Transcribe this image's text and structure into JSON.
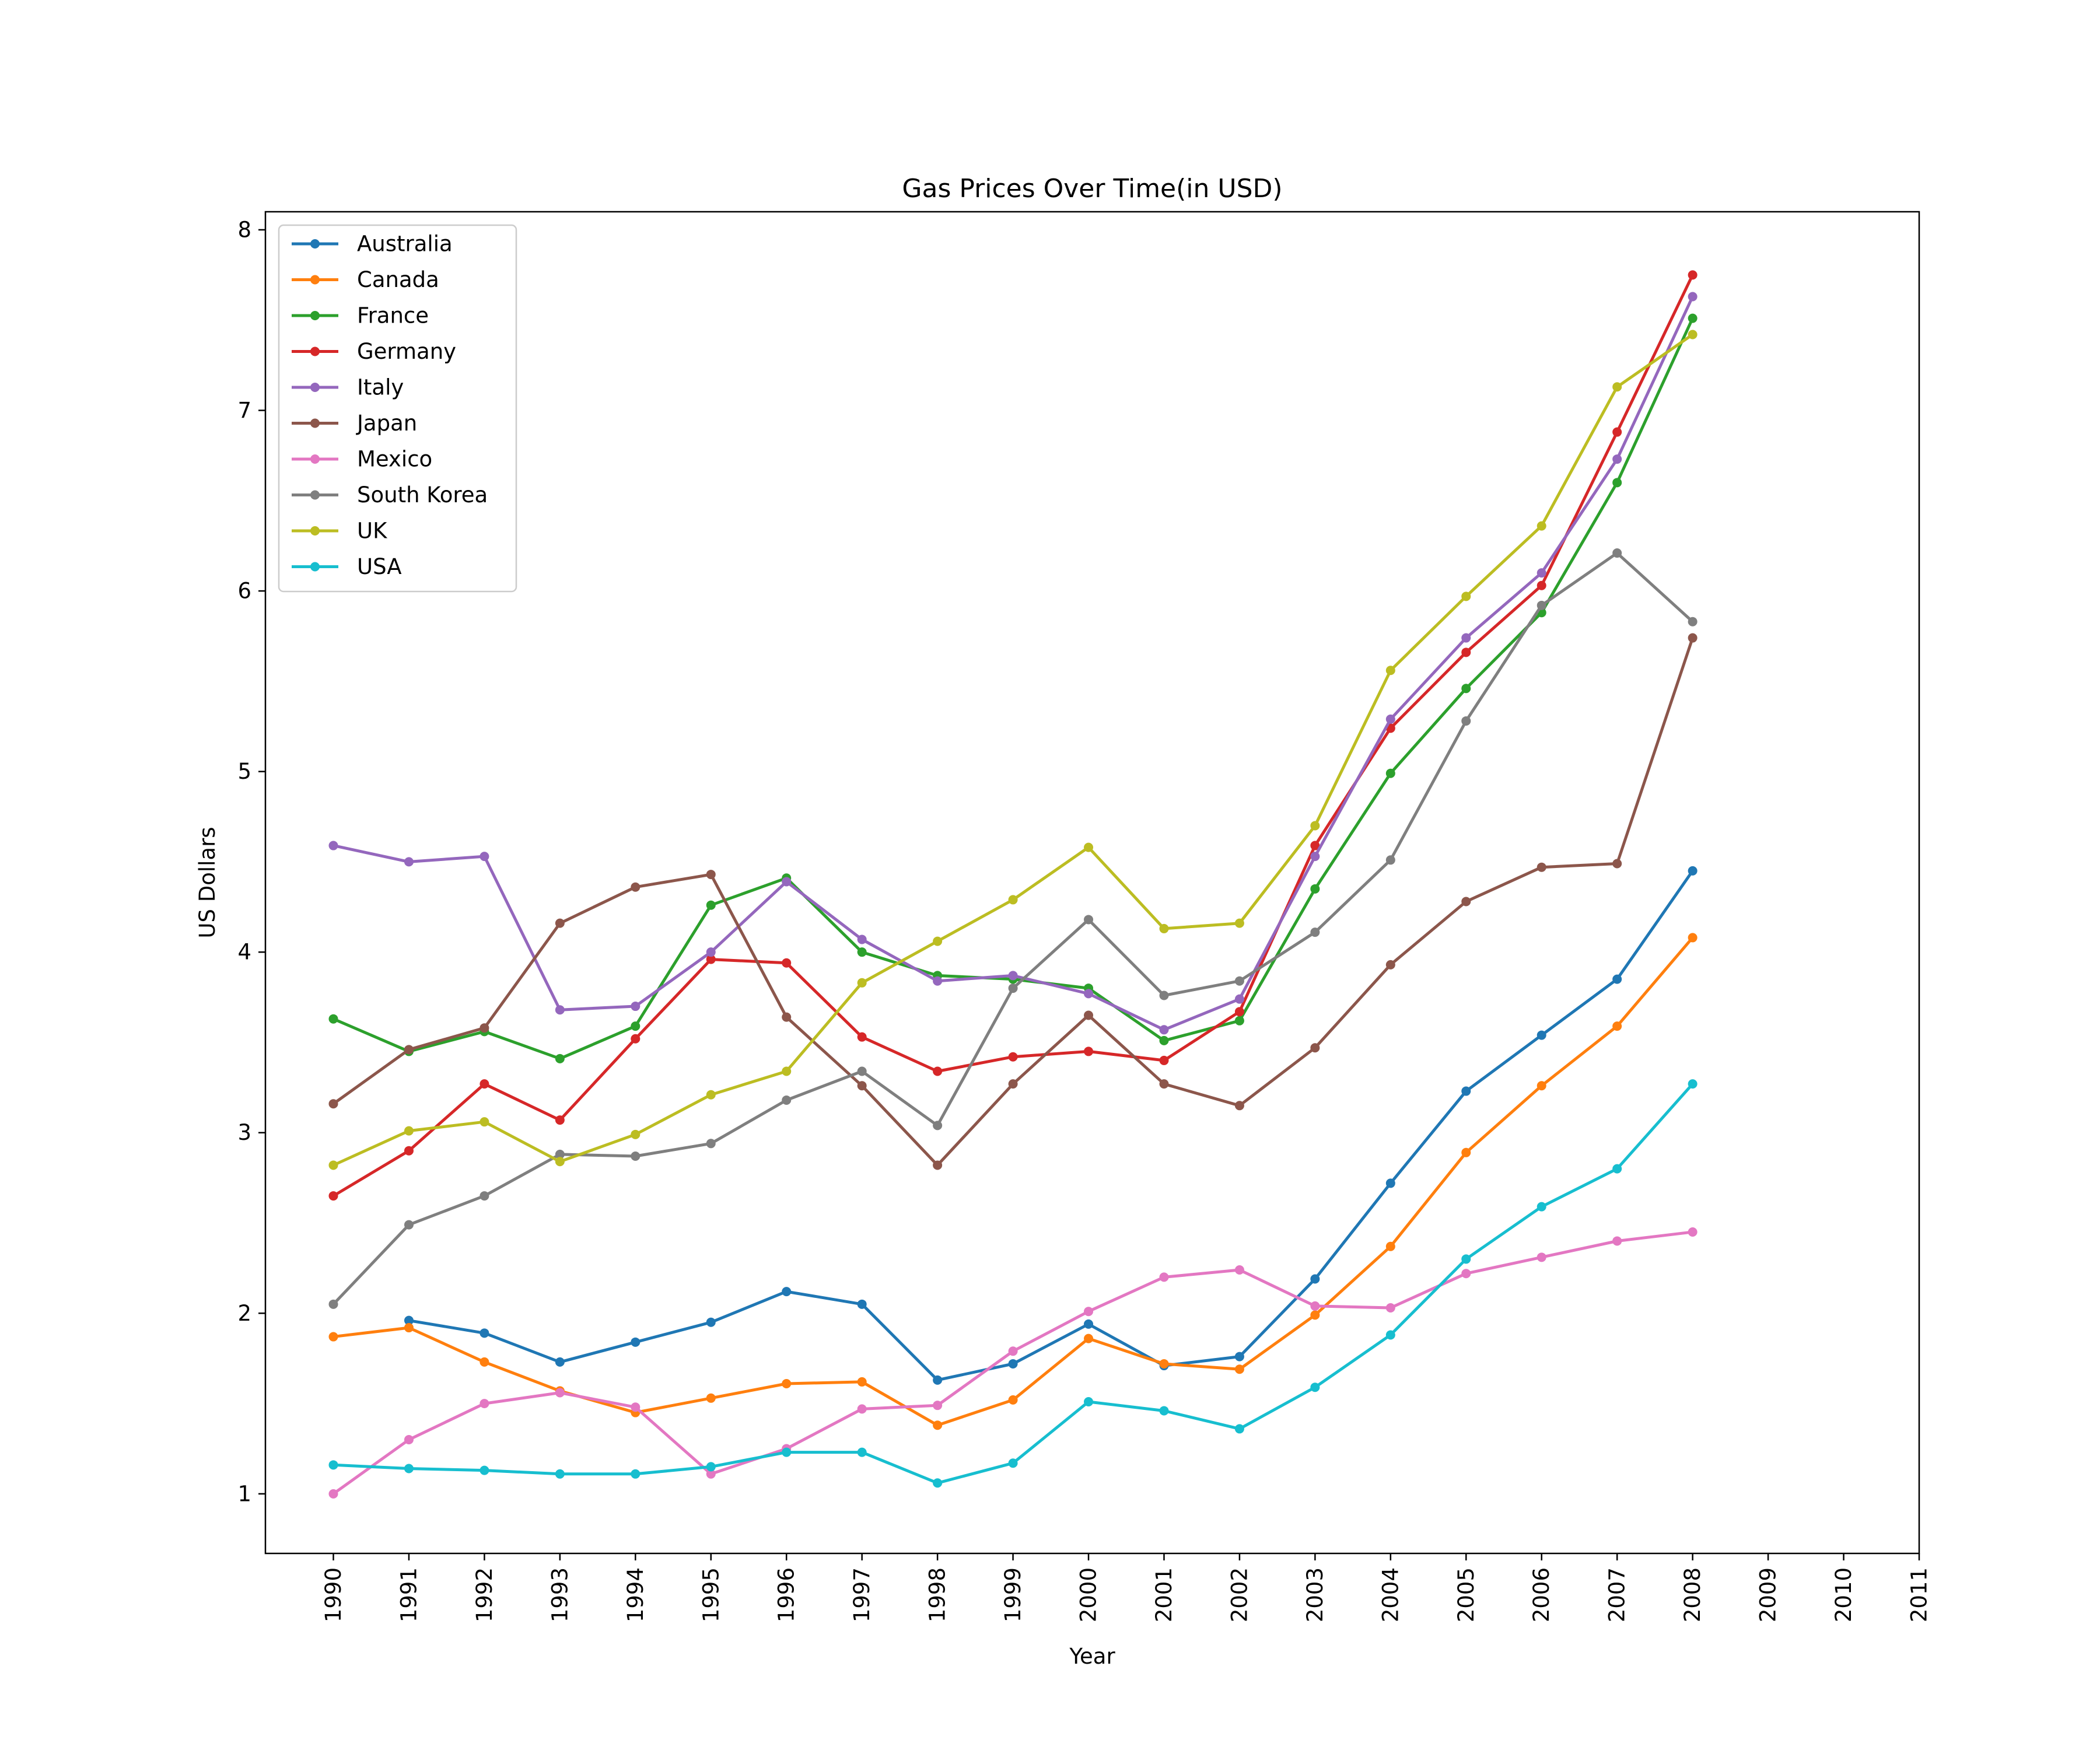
{
  "chart_data": {
    "type": "line",
    "title": "Gas Prices Over Time(in USD)",
    "xlabel": "Year",
    "ylabel": "US Dollars",
    "xlim": [
      1989.1,
      2011
    ],
    "ylim": [
      0.67,
      8.1
    ],
    "x_ticks": [
      1990,
      1991,
      1992,
      1993,
      1994,
      1995,
      1996,
      1997,
      1998,
      1999,
      2000,
      2001,
      2002,
      2003,
      2004,
      2005,
      2006,
      2007,
      2008,
      2009,
      2010,
      2011
    ],
    "y_ticks": [
      1,
      2,
      3,
      4,
      5,
      6,
      7,
      8
    ],
    "grid": false,
    "legend_position": "top-left",
    "series": [
      {
        "name": "Australia",
        "color": "#1f77b4",
        "x": [
          1991,
          1992,
          1993,
          1994,
          1995,
          1996,
          1997,
          1998,
          1999,
          2000,
          2001,
          2002,
          2003,
          2004,
          2005,
          2006,
          2007,
          2008
        ],
        "values": [
          1.96,
          1.89,
          1.73,
          1.84,
          1.95,
          2.12,
          2.05,
          1.63,
          1.72,
          1.94,
          1.71,
          1.76,
          2.19,
          2.72,
          3.23,
          3.54,
          3.85,
          4.45
        ]
      },
      {
        "name": "Canada",
        "color": "#ff7f0e",
        "x": [
          1990,
          1991,
          1992,
          1993,
          1994,
          1995,
          1996,
          1997,
          1998,
          1999,
          2000,
          2001,
          2002,
          2003,
          2004,
          2005,
          2006,
          2007,
          2008
        ],
        "values": [
          1.87,
          1.92,
          1.73,
          1.57,
          1.45,
          1.53,
          1.61,
          1.62,
          1.38,
          1.52,
          1.86,
          1.72,
          1.69,
          1.99,
          2.37,
          2.89,
          3.26,
          3.59,
          4.08
        ]
      },
      {
        "name": "France",
        "color": "#2ca02c",
        "x": [
          1990,
          1991,
          1992,
          1993,
          1994,
          1995,
          1996,
          1997,
          1998,
          1999,
          2000,
          2001,
          2002,
          2003,
          2004,
          2005,
          2006,
          2007,
          2008
        ],
        "values": [
          3.63,
          3.45,
          3.56,
          3.41,
          3.59,
          4.26,
          4.41,
          4.0,
          3.87,
          3.85,
          3.8,
          3.51,
          3.62,
          4.35,
          4.99,
          5.46,
          5.88,
          6.6,
          7.51
        ]
      },
      {
        "name": "Germany",
        "color": "#d62728",
        "x": [
          1990,
          1991,
          1992,
          1993,
          1994,
          1995,
          1996,
          1997,
          1998,
          1999,
          2000,
          2001,
          2002,
          2003,
          2004,
          2005,
          2006,
          2007,
          2008
        ],
        "values": [
          2.65,
          2.9,
          3.27,
          3.07,
          3.52,
          3.96,
          3.94,
          3.53,
          3.34,
          3.42,
          3.45,
          3.4,
          3.67,
          4.59,
          5.24,
          5.66,
          6.03,
          6.88,
          7.75
        ]
      },
      {
        "name": "Italy",
        "color": "#9467bd",
        "x": [
          1990,
          1991,
          1992,
          1993,
          1994,
          1995,
          1996,
          1997,
          1998,
          1999,
          2000,
          2001,
          2002,
          2003,
          2004,
          2005,
          2006,
          2007,
          2008
        ],
        "values": [
          4.59,
          4.5,
          4.53,
          3.68,
          3.7,
          4.0,
          4.39,
          4.07,
          3.84,
          3.87,
          3.77,
          3.57,
          3.74,
          4.53,
          5.29,
          5.74,
          6.1,
          6.73,
          7.63
        ]
      },
      {
        "name": "Japan",
        "color": "#8c564b",
        "x": [
          1990,
          1991,
          1992,
          1993,
          1994,
          1995,
          1996,
          1997,
          1998,
          1999,
          2000,
          2001,
          2002,
          2003,
          2004,
          2005,
          2006,
          2007,
          2008
        ],
        "values": [
          3.16,
          3.46,
          3.58,
          4.16,
          4.36,
          4.43,
          3.64,
          3.26,
          2.82,
          3.27,
          3.65,
          3.27,
          3.15,
          3.47,
          3.93,
          4.28,
          4.47,
          4.49,
          5.74
        ]
      },
      {
        "name": "Mexico",
        "color": "#e377c2",
        "x": [
          1990,
          1991,
          1992,
          1993,
          1994,
          1995,
          1996,
          1997,
          1998,
          1999,
          2000,
          2001,
          2002,
          2003,
          2004,
          2005,
          2006,
          2007,
          2008
        ],
        "values": [
          1.0,
          1.3,
          1.5,
          1.56,
          1.48,
          1.11,
          1.25,
          1.47,
          1.49,
          1.79,
          2.01,
          2.2,
          2.24,
          2.04,
          2.03,
          2.22,
          2.31,
          2.4,
          2.45
        ]
      },
      {
        "name": "South Korea",
        "color": "#7f7f7f",
        "x": [
          1990,
          1991,
          1992,
          1993,
          1994,
          1995,
          1996,
          1997,
          1998,
          1999,
          2000,
          2001,
          2002,
          2003,
          2004,
          2005,
          2006,
          2007,
          2008
        ],
        "values": [
          2.05,
          2.49,
          2.65,
          2.88,
          2.87,
          2.94,
          3.18,
          3.34,
          3.04,
          3.8,
          4.18,
          3.76,
          3.84,
          4.11,
          4.51,
          5.28,
          5.92,
          6.21,
          5.83
        ]
      },
      {
        "name": "UK",
        "color": "#bcbd22",
        "x": [
          1990,
          1991,
          1992,
          1993,
          1994,
          1995,
          1996,
          1997,
          1998,
          1999,
          2000,
          2001,
          2002,
          2003,
          2004,
          2005,
          2006,
          2007,
          2008
        ],
        "values": [
          2.82,
          3.01,
          3.06,
          2.84,
          2.99,
          3.21,
          3.34,
          3.83,
          4.06,
          4.29,
          4.58,
          4.13,
          4.16,
          4.7,
          5.56,
          5.97,
          6.36,
          7.13,
          7.42
        ]
      },
      {
        "name": "USA",
        "color": "#17becf",
        "x": [
          1990,
          1991,
          1992,
          1993,
          1994,
          1995,
          1996,
          1997,
          1998,
          1999,
          2000,
          2001,
          2002,
          2003,
          2004,
          2005,
          2006,
          2007,
          2008
        ],
        "values": [
          1.16,
          1.14,
          1.13,
          1.11,
          1.11,
          1.15,
          1.23,
          1.23,
          1.06,
          1.17,
          1.51,
          1.46,
          1.36,
          1.59,
          1.88,
          2.3,
          2.59,
          2.8,
          3.27
        ]
      }
    ]
  }
}
